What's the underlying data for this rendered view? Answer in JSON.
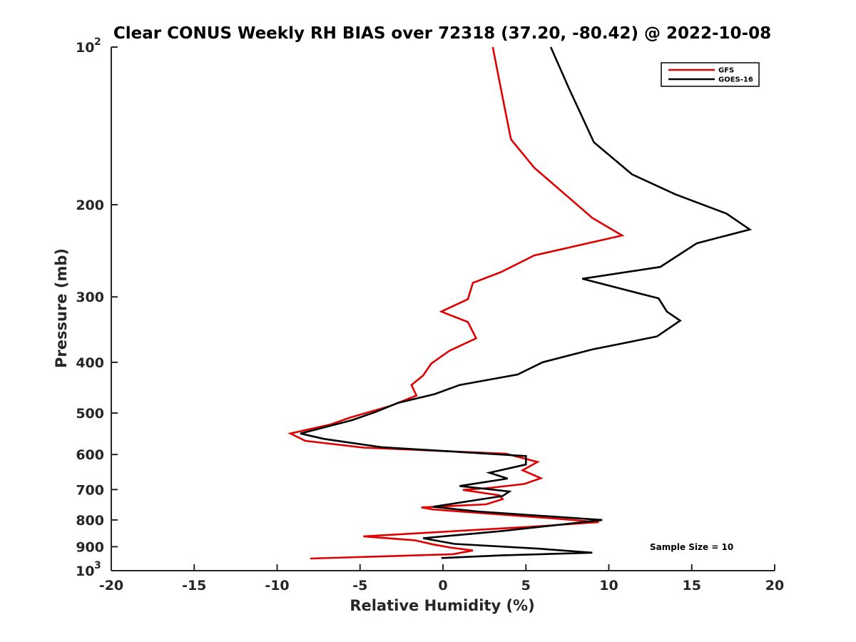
{
  "chart_data": {
    "type": "line",
    "title": "Clear CONUS Weekly RH BIAS over 72318 (37.20, -80.42) @ 2022-10-08",
    "xlabel": "Relative Humidity (%)",
    "ylabel": "Pressure (mb)",
    "xlim": [
      -20,
      20
    ],
    "ylim": [
      100,
      1000
    ],
    "yscale": "log",
    "y_reversed": true,
    "x_ticks": [
      "-20",
      "-15",
      "-10",
      "-5",
      "0",
      "5",
      "10",
      "15",
      "20"
    ],
    "y_ticks": [
      {
        "value": 100,
        "base": "10",
        "exp": "2"
      },
      {
        "value": 200,
        "label": "200"
      },
      {
        "value": 300,
        "label": "300"
      },
      {
        "value": 400,
        "label": "400"
      },
      {
        "value": 500,
        "label": "500"
      },
      {
        "value": 600,
        "label": "600"
      },
      {
        "value": 700,
        "label": "700"
      },
      {
        "value": 800,
        "label": "800"
      },
      {
        "value": 900,
        "label": "900"
      },
      {
        "value": 1000,
        "base": "10",
        "exp": "3"
      }
    ],
    "grid": false,
    "legend_position": "top-right",
    "annotation": "Sample Size = 10",
    "series": [
      {
        "name": "GFS",
        "color": "#e00000",
        "points": [
          [
            3.0,
            100
          ],
          [
            3.6,
            125
          ],
          [
            4.1,
            150
          ],
          [
            5.5,
            170
          ],
          [
            7.6,
            194
          ],
          [
            9.0,
            212
          ],
          [
            10.8,
            229
          ],
          [
            5.5,
            250
          ],
          [
            3.5,
            269
          ],
          [
            1.8,
            282
          ],
          [
            1.5,
            303
          ],
          [
            -0.1,
            320
          ],
          [
            1.5,
            335
          ],
          [
            2.0,
            360
          ],
          [
            0.4,
            380
          ],
          [
            -0.7,
            402
          ],
          [
            -1.2,
            424
          ],
          [
            -1.9,
            442
          ],
          [
            -1.6,
            463
          ],
          [
            -3.2,
            485
          ],
          [
            -5.6,
            510
          ],
          [
            -6.8,
            526
          ],
          [
            -9.2,
            547
          ],
          [
            -8.3,
            565
          ],
          [
            -4.8,
            582
          ],
          [
            3.8,
            598
          ],
          [
            5.7,
            620
          ],
          [
            4.8,
            643
          ],
          [
            5.9,
            666
          ],
          [
            4.9,
            683
          ],
          [
            2.8,
            695
          ],
          [
            1.2,
            701
          ],
          [
            3.4,
            718
          ],
          [
            3.6,
            730
          ],
          [
            2.6,
            747
          ],
          [
            -1.3,
            757
          ],
          [
            -0.6,
            764
          ],
          [
            6.5,
            794
          ],
          [
            9.4,
            808
          ],
          [
            5.4,
            824
          ],
          [
            -4.8,
            860
          ],
          [
            -1.7,
            875
          ],
          [
            -0.6,
            891
          ],
          [
            0.5,
            904
          ],
          [
            1.8,
            915
          ],
          [
            0.6,
            930
          ],
          [
            -8.0,
            948
          ]
        ]
      },
      {
        "name": "GOES-16",
        "color": "#000000",
        "points": [
          [
            6.5,
            100
          ],
          [
            7.6,
            120
          ],
          [
            9.1,
            152
          ],
          [
            11.4,
            175
          ],
          [
            14.0,
            191
          ],
          [
            17.1,
            208
          ],
          [
            18.5,
            223
          ],
          [
            15.3,
            237
          ],
          [
            13.1,
            263
          ],
          [
            8.4,
            277
          ],
          [
            13.0,
            302
          ],
          [
            13.5,
            320
          ],
          [
            14.3,
            333
          ],
          [
            12.9,
            357
          ],
          [
            9.0,
            378
          ],
          [
            6.0,
            400
          ],
          [
            4.5,
            422
          ],
          [
            1.0,
            442
          ],
          [
            -0.5,
            460
          ],
          [
            -2.7,
            478
          ],
          [
            -4.1,
            498
          ],
          [
            -5.5,
            516
          ],
          [
            -8.6,
            547
          ],
          [
            -7.2,
            560
          ],
          [
            -3.7,
            581
          ],
          [
            5.0,
            604
          ],
          [
            5.0,
            627
          ],
          [
            2.8,
            650
          ],
          [
            3.9,
            667
          ],
          [
            1.0,
            689
          ],
          [
            4.0,
            706
          ],
          [
            3.6,
            720
          ],
          [
            -0.6,
            755
          ],
          [
            2.1,
            771
          ],
          [
            9.6,
            800
          ],
          [
            6.3,
            822
          ],
          [
            3.4,
            841
          ],
          [
            -1.2,
            867
          ],
          [
            0.7,
            889
          ],
          [
            5.8,
            908
          ],
          [
            9.0,
            924
          ],
          [
            3.5,
            935
          ],
          [
            -0.1,
            946
          ]
        ]
      }
    ]
  }
}
